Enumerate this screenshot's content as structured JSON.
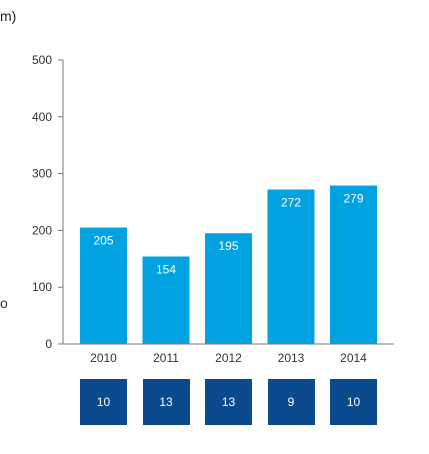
{
  "title_fragment": "m)",
  "edge_fragment": "o",
  "chart_data": {
    "type": "bar",
    "categories": [
      "2010",
      "2011",
      "2012",
      "2013",
      "2014"
    ],
    "values": [
      205,
      154,
      195,
      272,
      279
    ],
    "data_labels": [
      "205",
      "154",
      "195",
      "272",
      "279"
    ],
    "ylim": [
      0,
      500
    ],
    "yticks": [
      0,
      100,
      200,
      300,
      400,
      500
    ],
    "grid": false,
    "bar_color": "#00a3e0",
    "secondary_row": {
      "values": [
        "10",
        "13",
        "13",
        "9",
        "10"
      ],
      "box_color": "#0b4a8c"
    }
  }
}
